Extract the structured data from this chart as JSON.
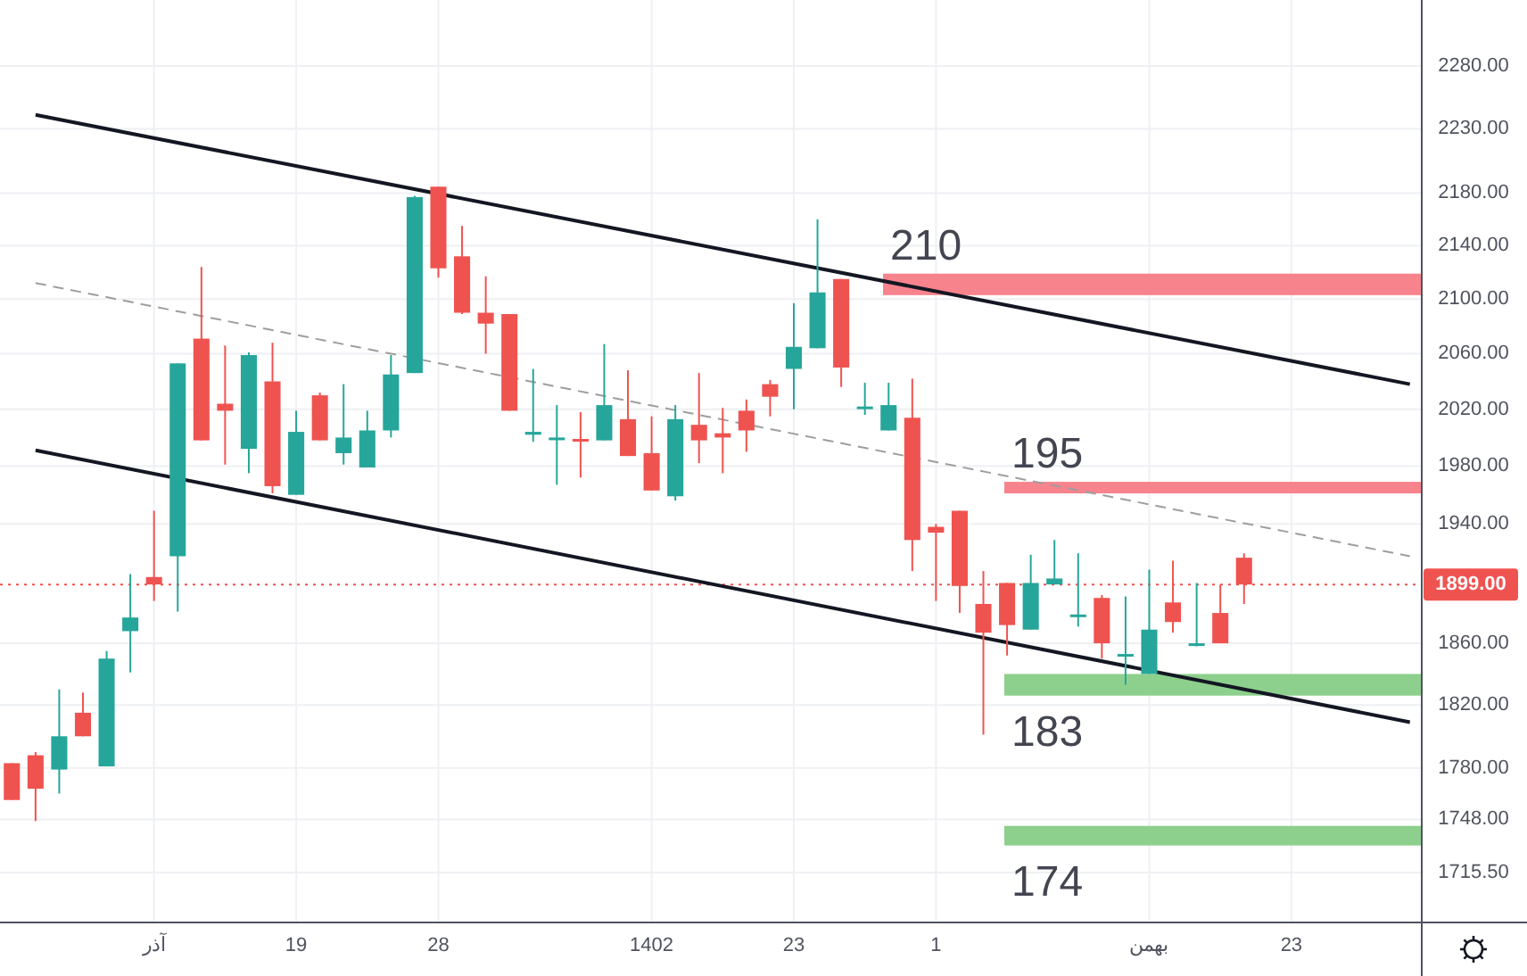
{
  "chart_data": {
    "type": "candlestick",
    "categories": [
      null,
      null,
      null,
      null,
      null,
      null,
      "آذر",
      null,
      null,
      null,
      null,
      null,
      "19",
      null,
      null,
      null,
      null,
      null,
      "28",
      null,
      null,
      null,
      null,
      null,
      null,
      null,
      null,
      "1402",
      null,
      null,
      null,
      null,
      null,
      "23",
      null,
      null,
      null,
      null,
      null,
      "1",
      null,
      null,
      null,
      null,
      null,
      null,
      null,
      null,
      "بهمن",
      null,
      null,
      null,
      null,
      null,
      "23",
      null,
      null,
      null,
      null,
      null
    ],
    "ohlc": [
      [
        1783,
        1783,
        1760,
        1760
      ],
      [
        1788,
        1790,
        1747,
        1767
      ],
      [
        1779,
        1830,
        1764,
        1800
      ],
      [
        1815,
        1828,
        1800,
        1800
      ],
      [
        1781,
        1855,
        1781,
        1850
      ],
      [
        1868,
        1906,
        1841,
        1877
      ],
      [
        1904,
        1949,
        1888,
        1899
      ],
      [
        1918,
        2053,
        1881,
        2053
      ],
      [
        2071,
        2124,
        1998,
        1998
      ],
      [
        2024,
        2066,
        1981,
        2019
      ],
      [
        1992,
        2061,
        1975,
        2059
      ],
      [
        2040,
        2068,
        1961,
        1966
      ],
      [
        1960,
        2019,
        1960,
        2004
      ],
      [
        2030,
        2032,
        1998,
        1998
      ],
      [
        1989,
        2038,
        1981,
        2000
      ],
      [
        1979,
        2019,
        1979,
        2005
      ],
      [
        2005,
        2059,
        2000,
        2045
      ],
      [
        2046,
        2178,
        2046,
        2177
      ],
      [
        2185,
        2185,
        2116,
        2123
      ],
      [
        2132,
        2155,
        2089,
        2090
      ],
      [
        2090,
        2117,
        2060,
        2082
      ],
      [
        2089,
        2089,
        2019,
        2019
      ],
      [
        2002,
        2049,
        1997,
        2004
      ],
      [
        1999,
        2023,
        1967,
        2000
      ],
      [
        1999,
        2018,
        1972,
        1998
      ],
      [
        1998,
        2067,
        1998,
        2023
      ],
      [
        2013,
        2048,
        1987,
        1987
      ],
      [
        1989,
        2015,
        1963,
        1963
      ],
      [
        1959,
        2023,
        1956,
        2013
      ],
      [
        2009,
        2046,
        1982,
        1998
      ],
      [
        2003,
        2021,
        1975,
        2000
      ],
      [
        2019,
        2027,
        1990,
        2005
      ],
      [
        2038,
        2041,
        2015,
        2029
      ],
      [
        2049,
        2097,
        2020,
        2065
      ],
      [
        2064,
        2160,
        2064,
        2105
      ],
      [
        2115,
        2115,
        2036,
        2050
      ],
      [
        2021,
        2039,
        2016,
        2022
      ],
      [
        2005,
        2039,
        2005,
        2023
      ],
      [
        2014,
        2042,
        1908,
        1929
      ],
      [
        1938,
        1940,
        1888,
        1934
      ],
      [
        1949,
        1949,
        1880,
        1898
      ],
      [
        1886,
        1908,
        1801,
        1867
      ],
      [
        1900,
        1900,
        1852,
        1872
      ],
      [
        1869,
        1919,
        1869,
        1900
      ],
      [
        1899,
        1929,
        1899,
        1903
      ],
      [
        1878,
        1920,
        1871,
        1879
      ],
      [
        1890,
        1892,
        1850,
        1860
      ],
      [
        1852,
        1891,
        1833,
        1853
      ],
      [
        1840,
        1909,
        1840,
        1869
      ],
      [
        1887,
        1915,
        1867,
        1874
      ],
      [
        1859,
        1900,
        1858,
        1860
      ],
      [
        1880,
        1899,
        1860,
        1860
      ],
      [
        1917,
        1920,
        1886,
        1899
      ],
      null,
      null,
      null,
      null,
      null,
      null,
      null
    ],
    "colors": [
      "#ef5350",
      "#ef5350",
      "#26a69a",
      "#ef5350",
      "#26a69a",
      "#26a69a",
      "#ef5350",
      "#26a69a",
      "#ef5350",
      "#ef5350",
      "#26a69a",
      "#ef5350",
      "#26a69a",
      "#ef5350",
      "#26a69a",
      "#26a69a",
      "#26a69a",
      "#26a69a",
      "#ef5350",
      "#ef5350",
      "#ef5350",
      "#ef5350",
      "#26a69a",
      "#26a69a",
      "#ef5350",
      "#26a69a",
      "#ef5350",
      "#ef5350",
      "#26a69a",
      "#ef5350",
      "#ef5350",
      "#ef5350",
      "#ef5350",
      "#26a69a",
      "#26a69a",
      "#ef5350",
      "#26a69a",
      "#26a69a",
      "#ef5350",
      "#ef5350",
      "#ef5350",
      "#ef5350",
      "#ef5350",
      "#26a69a",
      "#26a69a",
      "#26a69a",
      "#ef5350",
      "#26a69a",
      "#26a69a",
      "#ef5350",
      "#26a69a",
      "#ef5350",
      "#ef5350",
      null,
      null,
      null,
      null,
      null,
      null,
      null
    ],
    "series": [
      {
        "type": "line",
        "values": [
          null,
          2241,
          null,
          null,
          null,
          null,
          null,
          null,
          null,
          null,
          null,
          null,
          null,
          null,
          null,
          null,
          null,
          null,
          null,
          null,
          null,
          null,
          null,
          null,
          null,
          null,
          null,
          null,
          null,
          null,
          null,
          null,
          null,
          null,
          null,
          null,
          null,
          null,
          null,
          null,
          null,
          null,
          null,
          null,
          null,
          null,
          null,
          null,
          null,
          null,
          null,
          null,
          null,
          null,
          null,
          null,
          null,
          null,
          null,
          2038
        ],
        "color": "#131722",
        "line_style": "solid"
      },
      {
        "type": "line",
        "values": [
          null,
          1991,
          null,
          null,
          null,
          null,
          null,
          null,
          null,
          null,
          null,
          null,
          null,
          null,
          null,
          null,
          null,
          null,
          null,
          null,
          null,
          null,
          null,
          null,
          null,
          null,
          null,
          null,
          null,
          null,
          null,
          null,
          null,
          null,
          null,
          null,
          null,
          null,
          null,
          null,
          null,
          null,
          null,
          null,
          null,
          null,
          null,
          null,
          null,
          null,
          null,
          null,
          null,
          null,
          null,
          null,
          null,
          null,
          null,
          1809
        ],
        "color": "#131722",
        "line_style": "solid"
      },
      {
        "type": "line",
        "values": [
          null,
          2112,
          null,
          null,
          null,
          null,
          null,
          null,
          null,
          null,
          null,
          null,
          null,
          null,
          null,
          null,
          null,
          null,
          null,
          null,
          null,
          null,
          null,
          null,
          null,
          null,
          null,
          null,
          null,
          null,
          null,
          null,
          null,
          null,
          null,
          null,
          null,
          null,
          null,
          null,
          null,
          null,
          null,
          null,
          null,
          null,
          null,
          null,
          null,
          null,
          null,
          null,
          null,
          null,
          null,
          null,
          null,
          null,
          null,
          1918
        ],
        "color": "#9e9e9e",
        "line_style": "dashed"
      }
    ],
    "bands": [
      {
        "axis": "y",
        "from": 2103,
        "to": 2119,
        "label": "210",
        "color": "#f7838d"
      },
      {
        "axis": "y",
        "from": 1961,
        "to": 1969,
        "label": "195",
        "color": "#f7838d"
      },
      {
        "axis": "y",
        "from": 1826,
        "to": 1840,
        "label": "183",
        "color": "#8dcf8d"
      },
      {
        "axis": "y",
        "from": 1732,
        "to": 1744,
        "label": "174",
        "color": "#8dcf8d"
      }
    ],
    "ref_lines": [
      {
        "axis": "y",
        "value": 1899,
        "label": "1899.00",
        "color": "#ef5350",
        "line_style": "dotted"
      }
    ],
    "ylim": [
      1685.6,
      2333.7
    ],
    "yticks": [
      {
        "value": 1715.5,
        "label": "1715.50"
      },
      {
        "value": 1748,
        "label": "1748.00"
      },
      {
        "value": 1780,
        "label": "1780.00"
      },
      {
        "value": 1820,
        "label": "1820.00"
      },
      {
        "value": 1860,
        "label": "1860.00"
      },
      {
        "value": 1940,
        "label": "1940.00"
      },
      {
        "value": 1980,
        "label": "1980.00"
      },
      {
        "value": 2020,
        "label": "2020.00"
      },
      {
        "value": 2060,
        "label": "2060.00"
      },
      {
        "value": 2100,
        "label": "2100.00"
      },
      {
        "value": 2140,
        "label": "2140.00"
      },
      {
        "value": 2180,
        "label": "2180.00"
      },
      {
        "value": 2230,
        "label": "2230.00"
      },
      {
        "value": 2280,
        "label": "2280.00"
      }
    ],
    "log": true,
    "grid": true
  }
}
